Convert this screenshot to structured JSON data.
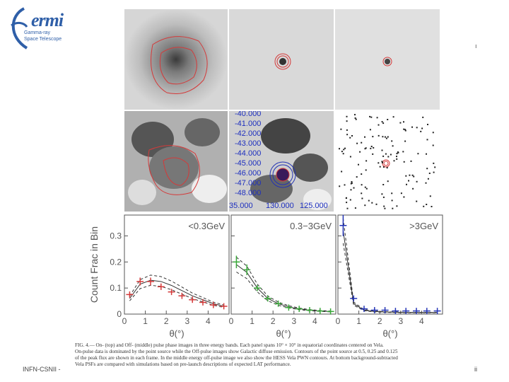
{
  "logo": {
    "word": "ermi",
    "subtitle": [
      "Gamma-ray",
      "Space Telescope"
    ]
  },
  "colors": {
    "red": "#d43a3a",
    "green": "#3aa83a",
    "blue": "#2333b5",
    "axis": "#555555"
  },
  "offpulse_ticks_y": [
    "-40.000",
    "-41.000",
    "-42.000",
    "-43.000",
    "-44.000",
    "-45.000",
    "-46.000",
    "-47.000",
    "-48.000"
  ],
  "offpulse_ticks_x": [
    "35.000",
    "130.000",
    "125.000"
  ],
  "plots": {
    "ylabel": "Count Frac in Bin",
    "xlabel": "θ(°)",
    "yticks": [
      "0",
      "0.1",
      "0.2",
      "0.3"
    ],
    "xticks": [
      "0",
      "1",
      "2",
      "3",
      "4"
    ],
    "panels": [
      "<0.3GeV",
      "0.3−3GeV",
      ">3GeV"
    ]
  },
  "chart_data": [
    {
      "type": "line",
      "title": "<0.3GeV",
      "xlabel": "θ(°)",
      "ylabel": "Count Frac in Bin",
      "xlim": [
        0,
        5
      ],
      "ylim": [
        0,
        0.38
      ],
      "x": [
        0.25,
        0.75,
        1.25,
        1.75,
        2.25,
        2.75,
        3.25,
        3.75,
        4.25,
        4.75
      ],
      "series": [
        {
          "name": "data",
          "color": "red",
          "values": [
            0.075,
            0.125,
            0.125,
            0.105,
            0.085,
            0.07,
            0.055,
            0.045,
            0.035,
            0.03
          ]
        }
      ],
      "sim": [
        0.06,
        0.115,
        0.13,
        0.125,
        0.11,
        0.09,
        0.07,
        0.055,
        0.04,
        0.03
      ]
    },
    {
      "type": "line",
      "title": "0.3−3GeV",
      "xlabel": "θ(°)",
      "ylabel": "",
      "xlim": [
        0,
        5
      ],
      "ylim": [
        0,
        0.38
      ],
      "x": [
        0.25,
        0.75,
        1.25,
        1.75,
        2.25,
        2.75,
        3.25,
        3.75,
        4.25,
        4.75
      ],
      "series": [
        {
          "name": "data",
          "color": "green",
          "values": [
            0.2,
            0.17,
            0.1,
            0.06,
            0.04,
            0.025,
            0.02,
            0.015,
            0.012,
            0.01
          ]
        }
      ],
      "sim": [
        0.19,
        0.16,
        0.1,
        0.06,
        0.04,
        0.028,
        0.02,
        0.015,
        0.012,
        0.01
      ]
    },
    {
      "type": "line",
      "title": ">3GeV",
      "xlabel": "θ(°)",
      "ylabel": "",
      "xlim": [
        0,
        5
      ],
      "ylim": [
        0,
        0.38
      ],
      "x": [
        0.25,
        0.75,
        1.25,
        1.75,
        2.25,
        2.75,
        3.25,
        3.75,
        4.25,
        4.75
      ],
      "series": [
        {
          "name": "data",
          "color": "blue",
          "values": [
            0.34,
            0.06,
            0.02,
            0.015,
            0.015,
            0.012,
            0.012,
            0.012,
            0.012,
            0.012
          ]
        }
      ],
      "sim": [
        0.32,
        0.04,
        0.015,
        0.01,
        0.008,
        0.007,
        0.006,
        0.006,
        0.006,
        0.006
      ]
    }
  ],
  "caption": [
    "FIG. 4.— On- (top) and Off- (middle) pulse phase images in three energy bands. Each panel spans 10° × 10° in equatorial coordinates centered on Vela.",
    "On-pulse data is dominated by the point source while the Off-pulse images show Galactic diffuse emission. Contours of the point source at 0.5, 0.25 and 0.125",
    "of the peak flux are shown in each frame. In the middle energy off-pulse image we also show the HESS Vela PWN contours. At bottom background-subtracted",
    "Vela PSFs are compared with simulations based on pre-launch descriptions of expected LAT performance."
  ],
  "footer": {
    "left": "INFN-CSNII -",
    "right": "ii"
  }
}
